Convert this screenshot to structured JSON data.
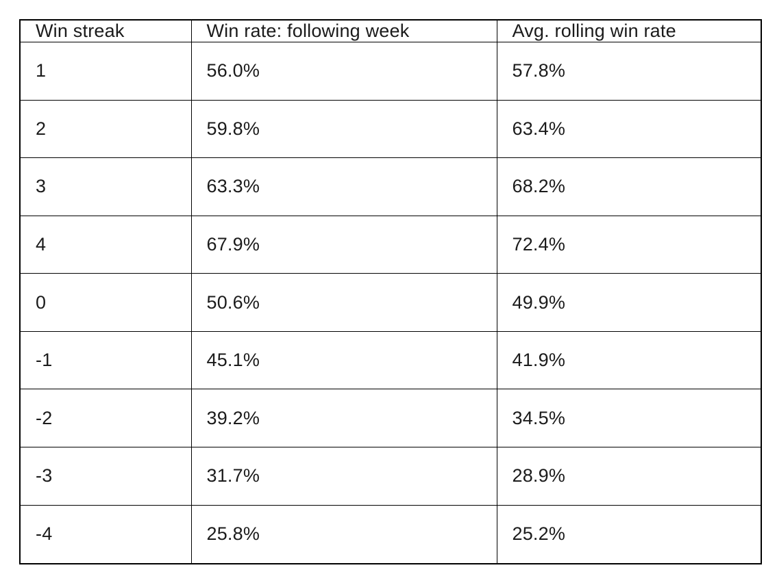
{
  "table": {
    "columns": [
      "Win streak",
      "Win rate: following week",
      "Avg. rolling win rate"
    ],
    "rows": [
      [
        "1",
        "56.0%",
        "57.8%"
      ],
      [
        "2",
        "59.8%",
        "63.4%"
      ],
      [
        "3",
        "63.3%",
        "68.2%"
      ],
      [
        "4",
        "67.9%",
        "72.4%"
      ],
      [
        "0",
        "50.6%",
        "49.9%"
      ],
      [
        "-1",
        "45.1%",
        "41.9%"
      ],
      [
        "-2",
        "39.2%",
        "34.5%"
      ],
      [
        "-3",
        "31.7%",
        "28.9%"
      ],
      [
        "-4",
        "25.8%",
        "25.2%"
      ]
    ]
  },
  "chart_data": {
    "type": "table",
    "title": "",
    "columns": [
      "Win streak",
      "Win rate: following week",
      "Avg. rolling win rate"
    ],
    "categories": [
      "1",
      "2",
      "3",
      "4",
      "0",
      "-1",
      "-2",
      "-3",
      "-4"
    ],
    "series": [
      {
        "name": "Win rate: following week",
        "values": [
          56.0,
          59.8,
          63.3,
          67.9,
          50.6,
          45.1,
          39.2,
          31.7,
          25.8
        ]
      },
      {
        "name": "Avg. rolling win rate",
        "values": [
          57.8,
          63.4,
          68.2,
          72.4,
          49.9,
          41.9,
          34.5,
          28.9,
          25.2
        ]
      }
    ],
    "value_unit": "%",
    "legend_position": "none",
    "grid": true
  },
  "colors": {
    "background": "#ffffff",
    "border": "#000000",
    "text": "#1b1b1b"
  }
}
